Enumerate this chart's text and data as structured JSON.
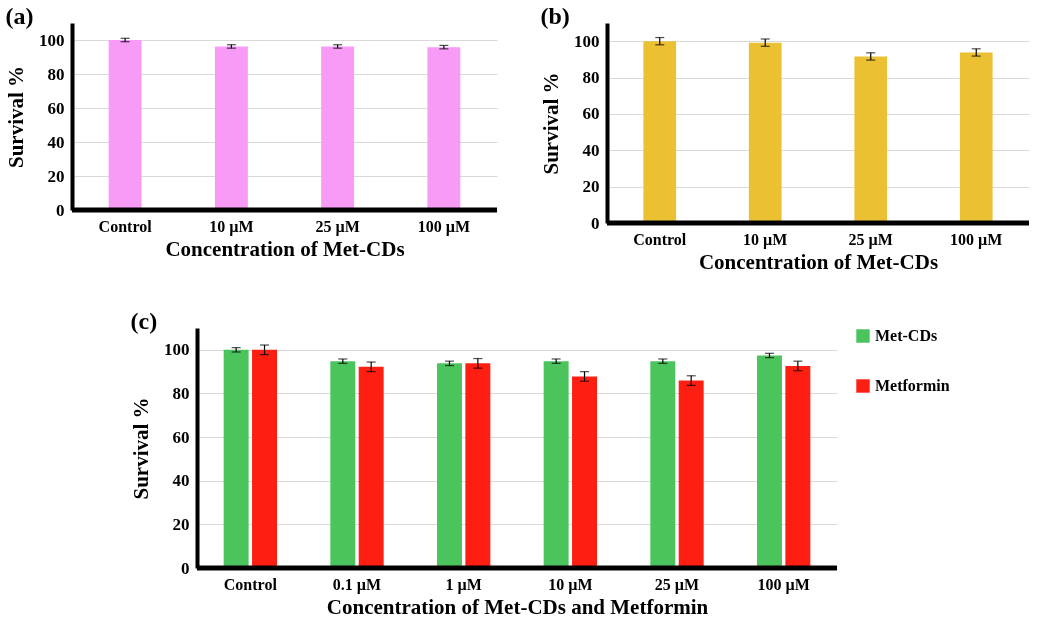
{
  "chart_data": [
    {
      "type": "bar",
      "title": "(a)",
      "xlabel": "Concentration of Met-CDs",
      "ylabel": "Survival %",
      "categories": [
        "Control",
        "10 µM",
        "25 µM",
        "100 µM"
      ],
      "series": [
        {
          "color": "#f79bf7",
          "values": [
            100,
            96.2,
            96.2,
            95.8
          ],
          "errors": [
            1,
            1,
            1,
            1
          ]
        }
      ],
      "ylim": [
        0,
        110
      ],
      "yticks": [
        0,
        20,
        40,
        60,
        80,
        100
      ],
      "grid": "y",
      "legend": false
    },
    {
      "type": "bar",
      "title": "(b)",
      "xlabel": "Concentration of Met-CDs",
      "ylabel": "Survival %",
      "categories": [
        "Control",
        "10 µM",
        "25 µM",
        "100 µM"
      ],
      "series": [
        {
          "color": "#ebc033",
          "values": [
            100,
            99.2,
            91.6,
            93.8
          ],
          "errors": [
            2,
            2,
            2,
            2
          ]
        }
      ],
      "ylim": [
        0,
        110
      ],
      "yticks": [
        0,
        20,
        40,
        60,
        80,
        100
      ],
      "grid": "y",
      "legend": false
    },
    {
      "type": "bar",
      "title": "(c)",
      "xlabel": "Concentration of Met-CDs and Metformin",
      "ylabel": "Survival %",
      "categories": [
        "Control",
        "0.1 µM",
        "1 µM",
        "10 µM",
        "25 µM",
        "100 µM"
      ],
      "series": [
        {
          "name": "Met-CDs",
          "color": "#4cc45e",
          "values": [
            100,
            94.8,
            93.8,
            94.8,
            94.8,
            97.4
          ],
          "errors": [
            1,
            1,
            1,
            1,
            1,
            1
          ]
        },
        {
          "name": "Metformin",
          "color": "#ff1e12",
          "values": [
            100,
            92.2,
            93.8,
            87.8,
            85.9,
            92.6
          ],
          "errors": [
            2.2,
            2.2,
            2.2,
            2.2,
            2.2,
            2.2
          ]
        }
      ],
      "ylim": [
        0,
        110
      ],
      "yticks": [
        0,
        20,
        40,
        60,
        80,
        100
      ],
      "grid": "y",
      "legend": "right"
    }
  ]
}
